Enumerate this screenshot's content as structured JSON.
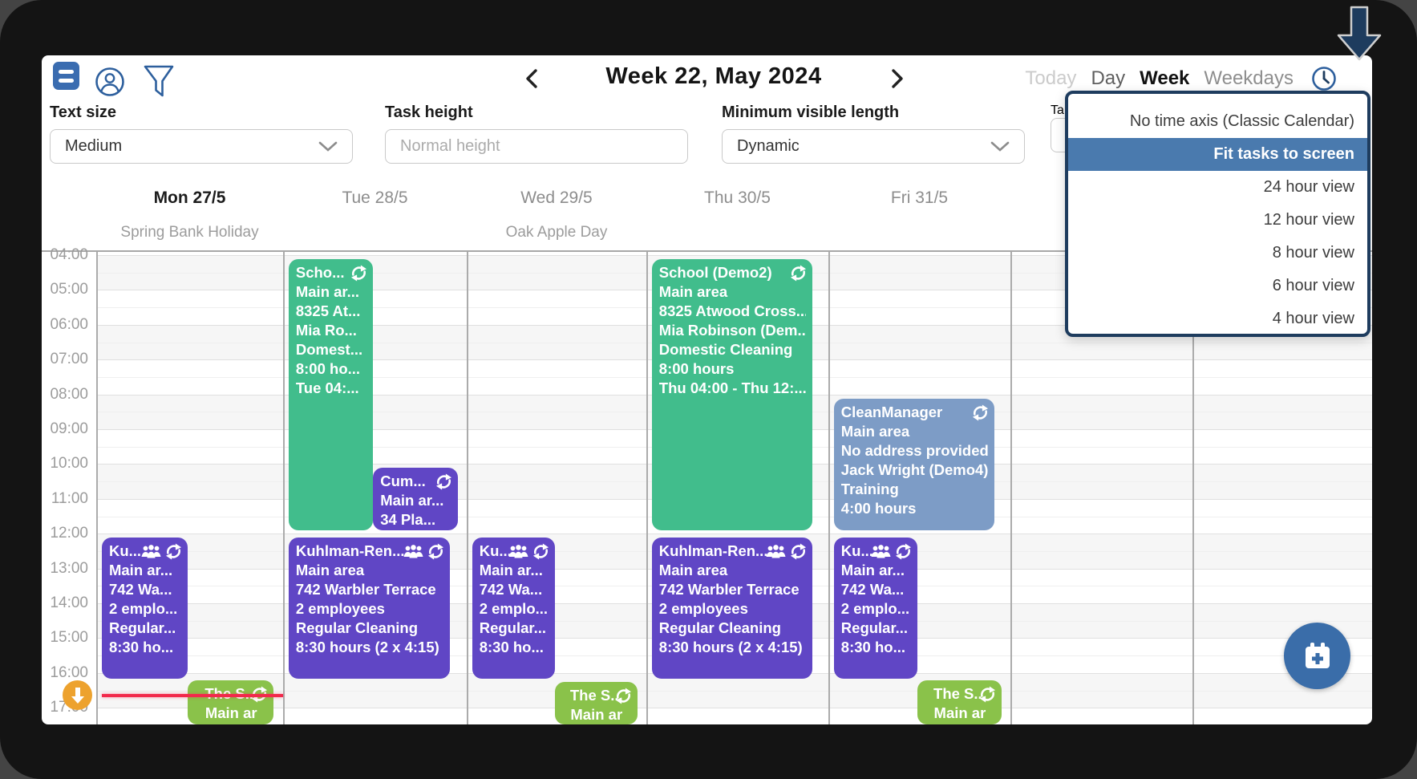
{
  "toolbar": {
    "week_title": "Week 22, May 2024",
    "tabs": {
      "today": "Today",
      "day": "Day",
      "week": "Week",
      "weekdays": "Weekdays"
    }
  },
  "settings": {
    "text_size": {
      "label": "Text size",
      "value": "Medium"
    },
    "task_height": {
      "label": "Task height",
      "placeholder": "Normal height"
    },
    "min_length": {
      "label": "Minimum visible length",
      "value": "Dynamic"
    },
    "hidden_fragment_label": "Ta"
  },
  "dropdown": {
    "items": [
      "No time axis (Classic Calendar)",
      "Fit tasks to screen",
      "24 hour view",
      "12 hour view",
      "8 hour view",
      "6 hour view",
      "4 hour view"
    ],
    "selected_index": 1
  },
  "calendar": {
    "time_axis": [
      "04:00",
      "05:00",
      "06:00",
      "07:00",
      "08:00",
      "09:00",
      "10:00",
      "11:00",
      "12:00",
      "13:00",
      "14:00",
      "15:00",
      "16:00",
      "17:00"
    ],
    "days": [
      {
        "label": "Mon 27/5",
        "bold": true,
        "holiday": "Spring Bank Holiday"
      },
      {
        "label": "Tue 28/5",
        "bold": false,
        "holiday": ""
      },
      {
        "label": "Wed 29/5",
        "bold": false,
        "holiday": "Oak Apple Day"
      },
      {
        "label": "Thu 30/5",
        "bold": false,
        "holiday": ""
      },
      {
        "label": "Fri 31/5",
        "bold": false,
        "holiday": ""
      },
      {
        "label": "",
        "bold": false,
        "holiday": ""
      },
      {
        "label": "",
        "bold": false,
        "holiday": ""
      }
    ],
    "events": [
      {
        "name": "kuhlman-mon",
        "day": 0,
        "start": 12.0,
        "end": 16.25,
        "lane": "left",
        "color": "purple",
        "lines": [
          "Ku...",
          "Main ar...",
          "742 Wa...",
          "2 emplo...",
          "Regular...",
          "8:30 ho..."
        ],
        "icons": {
          "group": true,
          "repeat": true
        },
        "align": "left"
      },
      {
        "name": "the-s-mon",
        "day": 0,
        "start": 16.1,
        "end": 18.0,
        "lane": "right",
        "color": "lime",
        "lines": [
          "The S...",
          "Main ar"
        ],
        "icons": {
          "group": false,
          "repeat": true
        },
        "align": "center"
      },
      {
        "name": "school-tue",
        "day": 1,
        "start": 4.0,
        "end": 12.0,
        "lane": "left",
        "color": "green",
        "lines": [
          "Scho...",
          "Main ar...",
          "8325 At...",
          "Mia Ro...",
          "Domest...",
          "8:00 ho...",
          "Tue 04:..."
        ],
        "icons": {
          "group": false,
          "repeat": true
        },
        "align": "left"
      },
      {
        "name": "cum-tue",
        "day": 1,
        "start": 10.0,
        "end": 12.0,
        "lane": "right",
        "color": "purple",
        "lines": [
          "Cum...",
          "Main ar...",
          "34 Pla..."
        ],
        "icons": {
          "group": false,
          "repeat": true
        },
        "align": "left"
      },
      {
        "name": "kuhlman-tue",
        "day": 1,
        "start": 12.0,
        "end": 16.25,
        "lane": "full",
        "color": "purple",
        "lines": [
          "Kuhlman-Ren...",
          "Main area",
          "742 Warbler Terrace",
          "2 employees",
          "Regular Cleaning",
          "8:30 hours (2 x 4:15)"
        ],
        "icons": {
          "group": true,
          "repeat": true
        },
        "align": "left"
      },
      {
        "name": "kuhlman-wed",
        "day": 2,
        "start": 12.0,
        "end": 16.25,
        "lane": "left",
        "color": "purple",
        "lines": [
          "Ku...",
          "Main ar...",
          "742 Wa...",
          "2 emplo...",
          "Regular...",
          "8:30 ho..."
        ],
        "icons": {
          "group": true,
          "repeat": true
        },
        "align": "left"
      },
      {
        "name": "the-s-wed",
        "day": 2,
        "start": 16.15,
        "end": 18.0,
        "lane": "right",
        "color": "lime",
        "lines": [
          "The S...",
          "Main ar"
        ],
        "icons": {
          "group": false,
          "repeat": true
        },
        "align": "center"
      },
      {
        "name": "school-thu",
        "day": 3,
        "start": 4.0,
        "end": 12.0,
        "lane": "full",
        "color": "green",
        "lines": [
          "School (Demo2)",
          "Main area",
          "8325 Atwood Cross...",
          "Mia Robinson (Dem...",
          "Domestic Cleaning",
          "8:00 hours",
          "Thu 04:00 - Thu 12:..."
        ],
        "icons": {
          "group": false,
          "repeat": true
        },
        "align": "left"
      },
      {
        "name": "kuhlman-thu",
        "day": 3,
        "start": 12.0,
        "end": 16.25,
        "lane": "full",
        "color": "purple",
        "lines": [
          "Kuhlman-Ren...",
          "Main area",
          "742 Warbler Terrace",
          "2 employees",
          "Regular Cleaning",
          "8:30 hours (2 x 4:15)"
        ],
        "icons": {
          "group": true,
          "repeat": true
        },
        "align": "left"
      },
      {
        "name": "cleanmanager-fri",
        "day": 4,
        "start": 8.0,
        "end": 12.0,
        "lane": "full",
        "color": "steel",
        "lines": [
          "CleanManager",
          "Main area",
          "No address provided",
          "Jack Wright (Demo4)",
          "Training",
          "4:00 hours"
        ],
        "icons": {
          "group": false,
          "repeat": true
        },
        "align": "left"
      },
      {
        "name": "kuhlman-fri",
        "day": 4,
        "start": 12.0,
        "end": 16.25,
        "lane": "left",
        "color": "purple",
        "lines": [
          "Ku...",
          "Main ar...",
          "742 Wa...",
          "2 emplo...",
          "Regular...",
          "8:30 ho..."
        ],
        "icons": {
          "group": true,
          "repeat": true
        },
        "align": "left"
      },
      {
        "name": "the-s-fri",
        "day": 4,
        "start": 16.1,
        "end": 18.0,
        "lane": "right",
        "color": "lime",
        "lines": [
          "The S...",
          "Main ar"
        ],
        "icons": {
          "group": false,
          "repeat": true
        },
        "align": "center"
      }
    ],
    "current_time": 16.65
  },
  "palette": {
    "purple": "#6046c5",
    "green": "#41bd8c",
    "lime": "#8ac24a",
    "steel": "#7d9cc6",
    "navy": "#1e3c5e",
    "highlight": "#4a7aae",
    "icon_blue": "#2d5f9d",
    "fab_blue": "#3a6da9",
    "orange": "#eda22e",
    "red_line": "#f2294b"
  }
}
